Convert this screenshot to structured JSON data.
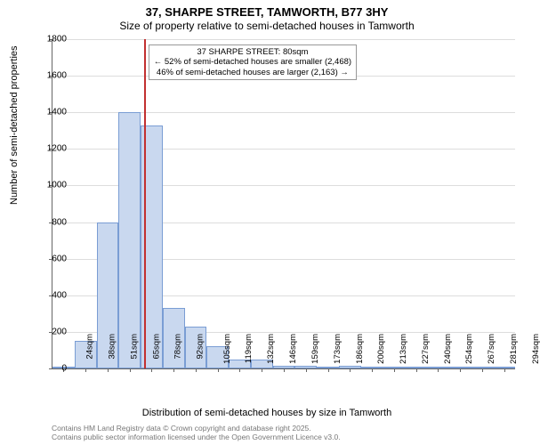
{
  "title": "37, SHARPE STREET, TAMWORTH, B77 3HY",
  "subtitle": "Size of property relative to semi-detached houses in Tamworth",
  "y_axis_label": "Number of semi-detached properties",
  "x_axis_label": "Distribution of semi-detached houses by size in Tamworth",
  "chart": {
    "type": "histogram",
    "background_color": "#ffffff",
    "grid_color": "#dddddd",
    "axis_color": "#666666",
    "bar_fill": "#c9d8ef",
    "bar_border": "#7a9dd4",
    "bar_width_ratio": 1.0,
    "ylim": [
      0,
      1800
    ],
    "y_ticks": [
      0,
      200,
      400,
      600,
      800,
      1000,
      1200,
      1400,
      1600,
      1800
    ],
    "x_categories": [
      "24sqm",
      "38sqm",
      "51sqm",
      "65sqm",
      "78sqm",
      "92sqm",
      "105sqm",
      "119sqm",
      "132sqm",
      "146sqm",
      "159sqm",
      "173sqm",
      "186sqm",
      "200sqm",
      "213sqm",
      "227sqm",
      "240sqm",
      "254sqm",
      "267sqm",
      "281sqm",
      "294sqm"
    ],
    "values": [
      10,
      150,
      800,
      1400,
      1330,
      330,
      230,
      120,
      50,
      50,
      15,
      15,
      10,
      15,
      5,
      5,
      5,
      5,
      0,
      5,
      5
    ],
    "reference_line": {
      "category_index": 4,
      "position_within": 0.15,
      "color": "#c23030"
    },
    "annotation": {
      "lines": [
        "37 SHARPE STREET: 80sqm",
        "← 52% of semi-detached houses are smaller (2,468)",
        "46% of semi-detached houses are larger (2,163) →"
      ],
      "border_color": "#999999",
      "bg_color": "#ffffff",
      "fontsize": 9.5
    },
    "title_fontsize": 13,
    "subtitle_fontsize": 12,
    "axis_label_fontsize": 11,
    "tick_fontsize": 10
  },
  "credits": {
    "line1": "Contains HM Land Registry data © Crown copyright and database right 2025.",
    "line2": "Contains public sector information licensed under the Open Government Licence v3.0."
  }
}
